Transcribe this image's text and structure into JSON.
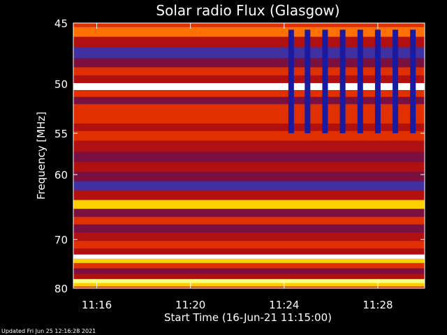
{
  "chart_data": {
    "type": "heatmap",
    "title": "Solar radio Flux (Glasgow)",
    "xlabel": "Start Time (16-Jun-21 11:15:00)",
    "ylabel": "Frequency [MHz]",
    "x_ticks": [
      "11:16",
      "11:20",
      "11:24",
      "11:28"
    ],
    "x_tick_minutes": [
      1,
      5,
      9,
      13
    ],
    "xlim_minutes": [
      0,
      15
    ],
    "y_ticks": [
      45,
      50,
      55,
      60,
      70,
      80
    ],
    "ylim": [
      45,
      80
    ],
    "y_scale": "reciprocal",
    "colormap": [
      "#000000",
      "#1a1aa0",
      "#4030a0",
      "#7a1040",
      "#b01010",
      "#e03000",
      "#ff7000",
      "#ffd000",
      "#ffff80",
      "#ffffff"
    ],
    "bands": [
      {
        "freq": 45.0,
        "level": 0.55
      },
      {
        "freq": 45.6,
        "level": 0.62
      },
      {
        "freq": 46.5,
        "level": 0.45
      },
      {
        "freq": 47.3,
        "level": 0.2
      },
      {
        "freq": 48.2,
        "level": 0.3
      },
      {
        "freq": 48.9,
        "level": 0.6
      },
      {
        "freq": 49.6,
        "level": 0.48
      },
      {
        "freq": 50.3,
        "level": 0.95
      },
      {
        "freq": 50.9,
        "level": 0.58
      },
      {
        "freq": 51.6,
        "level": 0.3
      },
      {
        "freq": 52.3,
        "level": 0.55
      },
      {
        "freq": 52.9,
        "level": 0.5
      },
      {
        "freq": 53.6,
        "level": 0.6
      },
      {
        "freq": 54.3,
        "level": 0.42
      },
      {
        "freq": 55.2,
        "level": 0.5
      },
      {
        "freq": 56.5,
        "level": 0.4
      },
      {
        "freq": 57.8,
        "level": 0.35
      },
      {
        "freq": 59.0,
        "level": 0.42
      },
      {
        "freq": 60.3,
        "level": 0.3
      },
      {
        "freq": 61.5,
        "level": 0.22
      },
      {
        "freq": 62.8,
        "level": 0.42
      },
      {
        "freq": 64.3,
        "level": 0.75
      },
      {
        "freq": 65.5,
        "level": 0.35
      },
      {
        "freq": 66.8,
        "level": 0.5
      },
      {
        "freq": 68.0,
        "level": 0.38
      },
      {
        "freq": 69.5,
        "level": 0.45
      },
      {
        "freq": 71.0,
        "level": 0.5
      },
      {
        "freq": 72.3,
        "level": 0.4
      },
      {
        "freq": 73.3,
        "level": 0.95
      },
      {
        "freq": 74.0,
        "level": 0.82
      },
      {
        "freq": 75.0,
        "level": 0.5
      },
      {
        "freq": 76.2,
        "level": 0.38
      },
      {
        "freq": 77.3,
        "level": 0.45
      },
      {
        "freq": 78.5,
        "level": 0.85
      },
      {
        "freq": 79.2,
        "level": 0.8
      },
      {
        "freq": 80.0,
        "level": 0.55
      }
    ],
    "interference_bars": {
      "freq_range": [
        45.5,
        55.0
      ],
      "level": 0.08,
      "minutes": [
        9.3,
        10.0,
        10.75,
        11.5,
        12.25,
        13.0,
        13.75,
        14.5
      ]
    }
  },
  "footer": "Updated Fri Jun 25 12:16:28 2021"
}
